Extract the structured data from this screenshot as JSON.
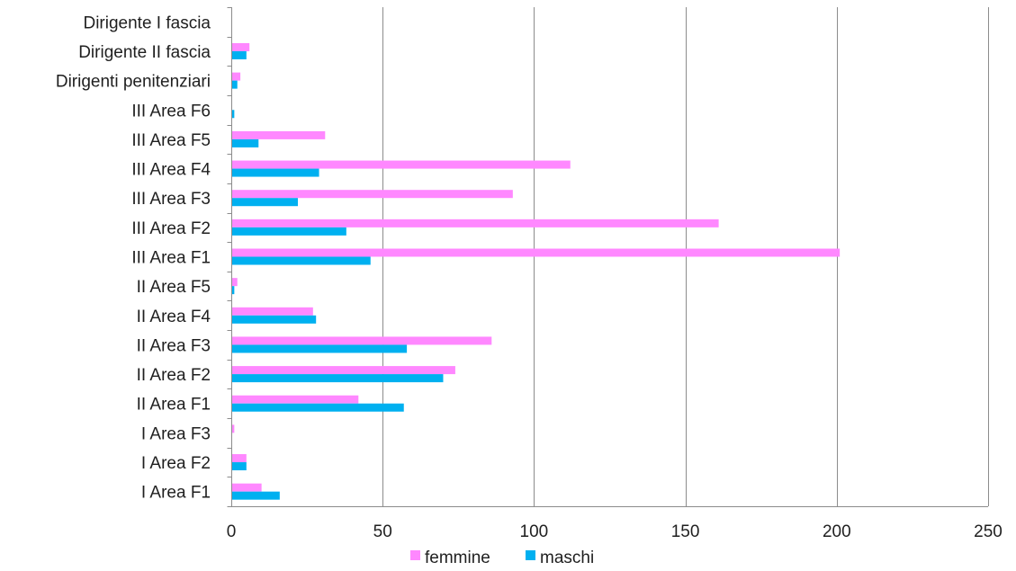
{
  "chart_data": {
    "type": "bar",
    "orientation": "horizontal",
    "title": "",
    "xlabel": "",
    "ylabel": "",
    "xlim": [
      0,
      250
    ],
    "x_ticks": [
      0,
      50,
      100,
      150,
      200,
      250
    ],
    "grid": true,
    "legend_position": "bottom",
    "categories": [
      "Dirigente I fascia",
      "Dirigente II fascia",
      "Dirigenti penitenziari",
      "III Area F6",
      "III Area F5",
      "III Area F4",
      "III Area F3",
      "III Area F2",
      "III Area F1",
      "II Area F5",
      "II Area F4",
      "II Area F3",
      "II Area F2",
      "II Area F1",
      "I Area F3",
      "I Area F2",
      "I Area F1"
    ],
    "series": [
      {
        "name": "femmine",
        "color": "#ff88ff",
        "values": [
          0,
          6,
          3,
          0,
          31,
          112,
          93,
          161,
          201,
          2,
          27,
          86,
          74,
          42,
          1,
          5,
          10
        ]
      },
      {
        "name": "maschi",
        "color": "#00b0f0",
        "values": [
          0,
          5,
          2,
          1,
          9,
          29,
          22,
          38,
          46,
          1,
          28,
          58,
          70,
          57,
          0,
          5,
          16
        ]
      }
    ]
  }
}
